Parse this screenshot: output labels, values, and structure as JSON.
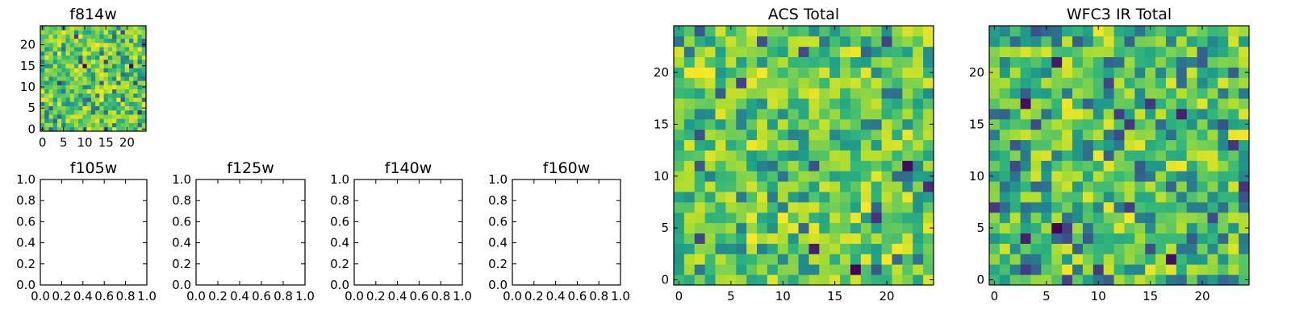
{
  "chart_data": [
    {
      "type": "heatmap",
      "title": "f814w",
      "grid_size": [
        25,
        25
      ],
      "xlim": [
        -0.5,
        24.5
      ],
      "ylim": [
        -0.5,
        24.5
      ],
      "x_ticks": [
        0,
        5,
        10,
        15,
        20
      ],
      "y_ticks": [
        0,
        5,
        10,
        15,
        20
      ],
      "colormap": "viridis",
      "values_source": "random-noise"
    },
    {
      "type": "heatmap",
      "title": "f105w",
      "empty": true,
      "xlim": [
        0,
        1
      ],
      "ylim": [
        0,
        1
      ],
      "x_ticks": [
        "0.0",
        "0.2",
        "0.4",
        "0.6",
        "0.8",
        "1.0"
      ],
      "y_ticks": [
        "0.0",
        "0.2",
        "0.4",
        "0.6",
        "0.8",
        "1.0"
      ]
    },
    {
      "type": "heatmap",
      "title": "f125w",
      "empty": true,
      "xlim": [
        0,
        1
      ],
      "ylim": [
        0,
        1
      ],
      "x_ticks": [
        "0.0",
        "0.2",
        "0.4",
        "0.6",
        "0.8",
        "1.0"
      ],
      "y_ticks": [
        "0.0",
        "0.2",
        "0.4",
        "0.6",
        "0.8",
        "1.0"
      ]
    },
    {
      "type": "heatmap",
      "title": "f140w",
      "empty": true,
      "xlim": [
        0,
        1
      ],
      "ylim": [
        0,
        1
      ],
      "x_ticks": [
        "0.0",
        "0.2",
        "0.4",
        "0.6",
        "0.8",
        "1.0"
      ],
      "y_ticks": [
        "0.0",
        "0.2",
        "0.4",
        "0.6",
        "0.8",
        "1.0"
      ]
    },
    {
      "type": "heatmap",
      "title": "f160w",
      "empty": true,
      "xlim": [
        0,
        1
      ],
      "ylim": [
        0,
        1
      ],
      "x_ticks": [
        "0.0",
        "0.2",
        "0.4",
        "0.6",
        "0.8",
        "1.0"
      ],
      "y_ticks": [
        "0.0",
        "0.2",
        "0.4",
        "0.6",
        "0.8",
        "1.0"
      ]
    },
    {
      "type": "heatmap",
      "title": "ACS Total",
      "grid_size": [
        25,
        25
      ],
      "xlim": [
        -0.5,
        24.5
      ],
      "ylim": [
        -0.5,
        24.5
      ],
      "x_ticks": [
        0,
        5,
        10,
        15,
        20
      ],
      "y_ticks": [
        0,
        5,
        10,
        15,
        20
      ],
      "colormap": "viridis",
      "values_source": "random-noise"
    },
    {
      "type": "heatmap",
      "title": "WFC3 IR Total",
      "grid_size": [
        25,
        25
      ],
      "xlim": [
        -0.5,
        24.5
      ],
      "ylim": [
        -0.5,
        24.5
      ],
      "x_ticks": [
        0,
        5,
        10,
        15,
        20
      ],
      "y_ticks": [
        0,
        5,
        10,
        15,
        20
      ],
      "colormap": "viridis",
      "values_source": "random-noise"
    }
  ]
}
